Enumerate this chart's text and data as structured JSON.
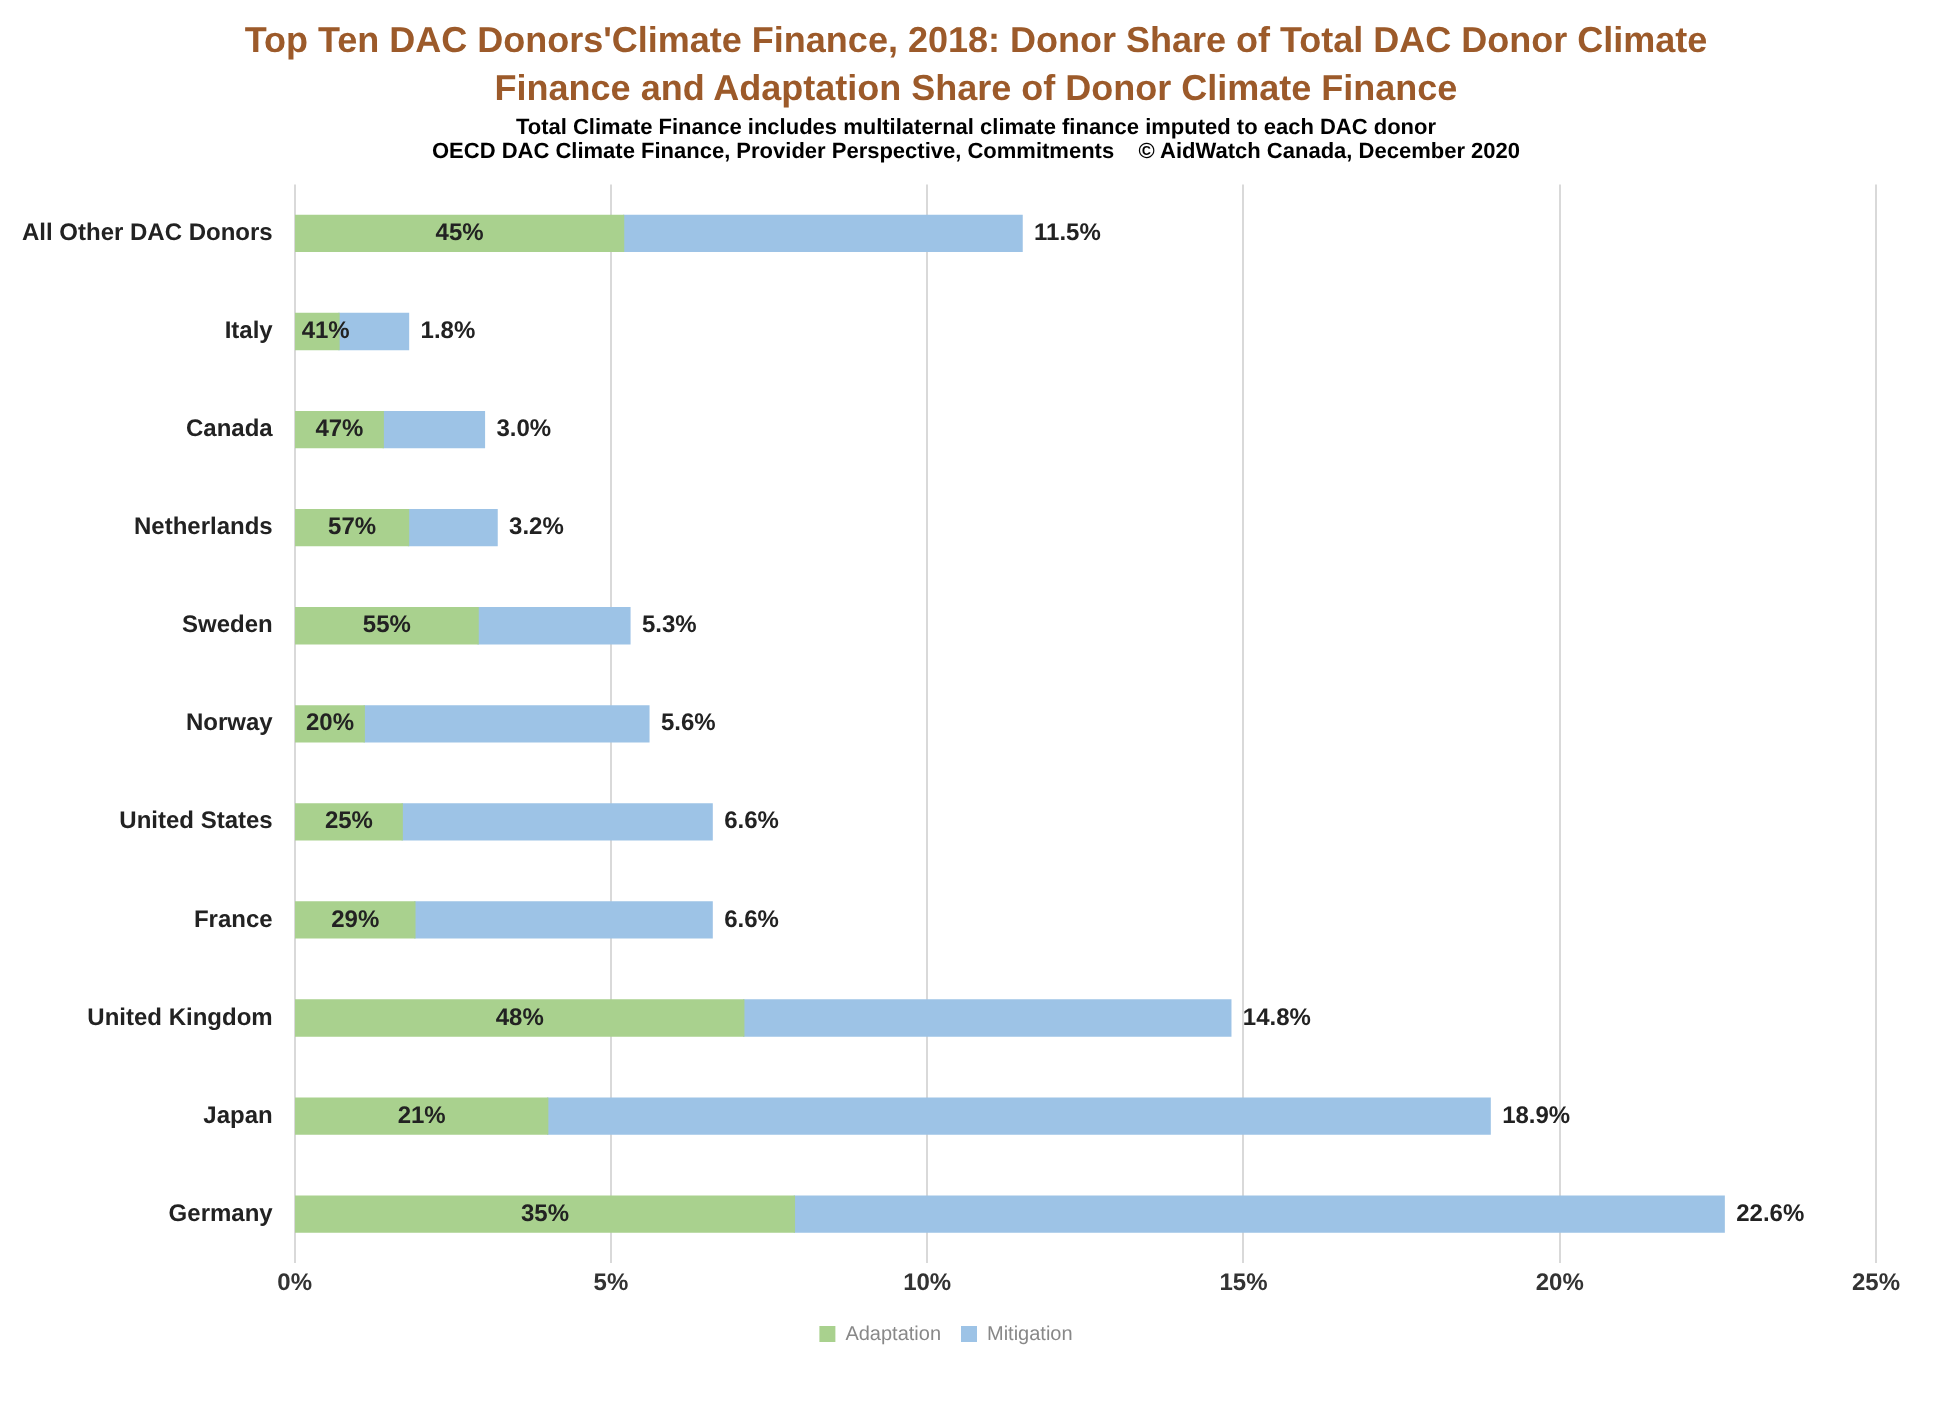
{
  "chart_data": {
    "type": "bar",
    "orientation": "horizontal",
    "stacked": true,
    "title": "Top Ten DAC Donors'Climate Finance, 2018:  Donor Share of Total DAC Donor Climate Finance and Adaptation Share of Donor Climate Finance",
    "subtitle": "Total Climate Finance includes multilaternal climate finance imputed to each DAC donor",
    "annotations": [
      "OECD DAC Climate Finance, Provider Perspective, Commitments    © AidWatch Canada, December 2020",
      "45%",
      "41%",
      "47%",
      "57%",
      "55%",
      "20%",
      "25%",
      "29%",
      "48%",
      "21%",
      "35%"
    ],
    "categories": [
      "All Other DAC Donors",
      "Italy",
      "Canada",
      "Netherlands",
      "Sweden",
      "Norway",
      "United States",
      "France",
      "United Kingdom",
      "Japan",
      "Germany"
    ],
    "series": [
      {
        "name": "Adaptation",
        "color": "#a9d18e",
        "values": [
          5.2,
          0.7,
          1.4,
          1.8,
          2.9,
          1.1,
          1.7,
          1.9,
          7.1,
          4.0,
          7.9
        ]
      },
      {
        "name": "Mitigation",
        "color": "#9dc3e6",
        "values": [
          6.3,
          1.1,
          1.6,
          1.4,
          2.4,
          4.5,
          4.9,
          4.7,
          7.7,
          14.9,
          14.7
        ]
      }
    ],
    "totals": [
      "11.5%",
      "1.8%",
      "3.0%",
      "3.2%",
      "5.3%",
      "5.6%",
      "6.6%",
      "6.6%",
      "14.8%",
      "18.9%",
      "22.6%"
    ],
    "xlim": [
      0,
      25
    ],
    "xticks": [
      {
        "value": 0,
        "label": "0%"
      },
      {
        "value": 5,
        "label": "5%"
      },
      {
        "value": 10,
        "label": "10%"
      },
      {
        "value": 15,
        "label": "15%"
      },
      {
        "value": 20,
        "label": "20%"
      },
      {
        "value": 25,
        "label": "25%"
      }
    ],
    "grid": "x",
    "legend": "bottom"
  }
}
